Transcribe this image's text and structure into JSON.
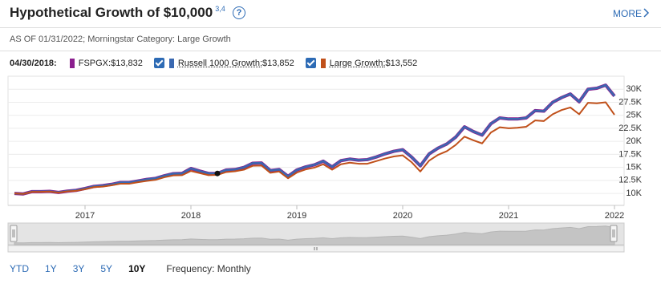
{
  "header": {
    "title": "Hypothetical Growth of $10,000",
    "footnote": "3,4",
    "help": "?",
    "more": "MORE",
    "as_of": "AS OF 01/31/2022; Morningstar Category: Large Growth"
  },
  "chart_data": {
    "type": "line",
    "hover": {
      "label": "04/30/2018:",
      "x": "2018-04"
    },
    "x": [
      "2016-05",
      "2016-06",
      "2016-07",
      "2016-08",
      "2016-09",
      "2016-10",
      "2016-11",
      "2016-12",
      "2017-01",
      "2017-02",
      "2017-03",
      "2017-04",
      "2017-05",
      "2017-06",
      "2017-07",
      "2017-08",
      "2017-09",
      "2017-10",
      "2017-11",
      "2017-12",
      "2018-01",
      "2018-02",
      "2018-03",
      "2018-04",
      "2018-05",
      "2018-06",
      "2018-07",
      "2018-08",
      "2018-09",
      "2018-10",
      "2018-11",
      "2018-12",
      "2019-01",
      "2019-02",
      "2019-03",
      "2019-04",
      "2019-05",
      "2019-06",
      "2019-07",
      "2019-08",
      "2019-09",
      "2019-10",
      "2019-11",
      "2019-12",
      "2020-01",
      "2020-02",
      "2020-03",
      "2020-04",
      "2020-05",
      "2020-06",
      "2020-07",
      "2020-08",
      "2020-09",
      "2020-10",
      "2020-11",
      "2020-12",
      "2021-01",
      "2021-02",
      "2021-03",
      "2021-04",
      "2021-05",
      "2021-06",
      "2021-07",
      "2021-08",
      "2021-09",
      "2021-10",
      "2021-11",
      "2021-12",
      "2022-01"
    ],
    "series": [
      {
        "name": "FSPGX",
        "color": "#8b1f8e",
        "checkbox": false,
        "hover_value": 13832,
        "hover_label": "$13,832",
        "values": [
          10000,
          9900,
          10340,
          10340,
          10390,
          10190,
          10440,
          10590,
          10940,
          11340,
          11490,
          11740,
          12090,
          12090,
          12390,
          12690,
          12890,
          13390,
          13790,
          13840,
          14790,
          14290,
          13840,
          13832,
          14490,
          14590,
          14990,
          15790,
          15840,
          14390,
          14590,
          13290,
          14490,
          15090,
          15490,
          16190,
          15090,
          16290,
          16590,
          16390,
          16490,
          16990,
          17590,
          18090,
          18390,
          16990,
          15290,
          17590,
          18690,
          19490,
          20790,
          22790,
          21890,
          21190,
          23390,
          24490,
          24290,
          24290,
          24490,
          25890,
          25790,
          27490,
          28390,
          29090,
          27590,
          29990,
          30190,
          30790,
          28690
        ]
      },
      {
        "name": "Russell 1000 Growth",
        "color": "#3a68b0",
        "checkbox": true,
        "hover_value": 13852,
        "hover_label": "$13,852",
        "values": [
          10000,
          9900,
          10350,
          10350,
          10400,
          10200,
          10450,
          10600,
          10950,
          11350,
          11500,
          11750,
          12100,
          12100,
          12400,
          12700,
          12900,
          13400,
          13800,
          13850,
          14800,
          14300,
          13850,
          13852,
          14500,
          14600,
          15000,
          15800,
          15850,
          14400,
          14600,
          13300,
          14500,
          15100,
          15500,
          16200,
          15100,
          16300,
          16600,
          16400,
          16500,
          17000,
          17600,
          18100,
          18400,
          17000,
          15300,
          17600,
          18700,
          19500,
          20800,
          22800,
          21900,
          21200,
          23400,
          24500,
          24300,
          24300,
          24500,
          25900,
          25800,
          27500,
          28400,
          29100,
          27600,
          30000,
          30200,
          30800,
          28700
        ]
      },
      {
        "name": "Large Growth",
        "color": "#c0501a",
        "checkbox": true,
        "hover_value": 13552,
        "hover_label": "$13,552",
        "values": [
          10000,
          9900,
          10300,
          10300,
          10350,
          10150,
          10400,
          10500,
          10800,
          11200,
          11300,
          11550,
          11850,
          11850,
          12150,
          12400,
          12600,
          13100,
          13450,
          13500,
          14300,
          13900,
          13500,
          13552,
          14100,
          14250,
          14550,
          15300,
          15350,
          13950,
          14200,
          12900,
          14000,
          14600,
          14950,
          15600,
          14550,
          15600,
          15900,
          15700,
          15700,
          16200,
          16700,
          17100,
          17300,
          16000,
          14200,
          16300,
          17400,
          18100,
          19300,
          20900,
          20200,
          19600,
          21700,
          22700,
          22500,
          22600,
          22800,
          24000,
          23900,
          25200,
          26000,
          26500,
          25200,
          27400,
          27300,
          27500,
          25100
        ]
      }
    ],
    "ylim": [
      7700,
      32500
    ],
    "yticks": [
      {
        "value": 10000,
        "label": "10K"
      },
      {
        "value": 12500,
        "label": "12.5K"
      },
      {
        "value": 15000,
        "label": "15K"
      },
      {
        "value": 17500,
        "label": "17.5K"
      },
      {
        "value": 20000,
        "label": "20K"
      },
      {
        "value": 22500,
        "label": "22.5K"
      },
      {
        "value": 25000,
        "label": "25K"
      },
      {
        "value": 27500,
        "label": "27.5K"
      },
      {
        "value": 30000,
        "label": "30K"
      }
    ],
    "xticks": [
      {
        "value": "2017-01",
        "label": "2017"
      },
      {
        "value": "2018-01",
        "label": "2018"
      },
      {
        "value": "2019-01",
        "label": "2019"
      },
      {
        "value": "2020-01",
        "label": "2020"
      },
      {
        "value": "2021-01",
        "label": "2021"
      },
      {
        "value": "2022-01",
        "label": "2022"
      }
    ],
    "grid": true
  },
  "range_buttons": {
    "options": [
      "YTD",
      "1Y",
      "3Y",
      "5Y",
      "10Y"
    ],
    "selected": 4
  },
  "frequency": "Frequency: Monthly"
}
